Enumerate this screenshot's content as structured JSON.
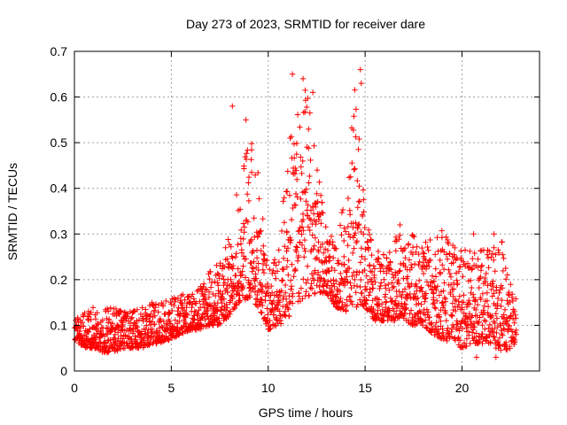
{
  "chart_data": {
    "type": "scatter",
    "title": "Day 273 of 2023, SRMTID for receiver dare",
    "xlabel": "GPS time / hours",
    "ylabel": "SRMTID / TECUs",
    "xlim": [
      0,
      24
    ],
    "ylim": [
      0,
      0.7
    ],
    "x_ticks": [
      0,
      5,
      10,
      15,
      20
    ],
    "y_ticks": [
      0,
      0.1,
      0.2,
      0.3,
      0.4,
      0.5,
      0.6,
      0.7
    ],
    "x_tick_labels": [
      "0",
      "5",
      "10",
      "15",
      "20"
    ],
    "y_tick_labels": [
      "0",
      "0.1",
      "0.2",
      "0.3",
      "0.4",
      "0.5",
      "0.6",
      "0.7"
    ],
    "grid": true,
    "marker": "+",
    "marker_color": "#ff0000",
    "time_step_hours": 0.025,
    "x_start": 0.0,
    "x_end": 22.8,
    "envelope": {
      "x": [
        0,
        0.5,
        1,
        1.5,
        2,
        2.5,
        3,
        3.5,
        4,
        4.5,
        5,
        5.5,
        6,
        6.5,
        7,
        7.5,
        8,
        8.5,
        9,
        9.5,
        10,
        10.5,
        11,
        11.5,
        12,
        12.5,
        13,
        13.5,
        14,
        14.5,
        15,
        15.5,
        16,
        16.5,
        17,
        17.5,
        18,
        18.5,
        19,
        19.5,
        20,
        20.5,
        21,
        21.5,
        22,
        22.5,
        22.8
      ],
      "low": [
        0.07,
        0.05,
        0.05,
        0.04,
        0.04,
        0.05,
        0.05,
        0.05,
        0.06,
        0.06,
        0.07,
        0.08,
        0.09,
        0.09,
        0.1,
        0.1,
        0.12,
        0.15,
        0.16,
        0.14,
        0.09,
        0.1,
        0.11,
        0.15,
        0.16,
        0.17,
        0.17,
        0.14,
        0.13,
        0.14,
        0.14,
        0.11,
        0.11,
        0.11,
        0.11,
        0.1,
        0.1,
        0.08,
        0.07,
        0.06,
        0.05,
        0.06,
        0.06,
        0.06,
        0.04,
        0.05,
        0.06
      ],
      "high": [
        0.11,
        0.13,
        0.14,
        0.14,
        0.14,
        0.13,
        0.13,
        0.14,
        0.15,
        0.15,
        0.16,
        0.17,
        0.17,
        0.19,
        0.22,
        0.24,
        0.3,
        0.42,
        0.54,
        0.45,
        0.22,
        0.26,
        0.48,
        0.6,
        0.62,
        0.46,
        0.32,
        0.27,
        0.4,
        0.64,
        0.34,
        0.26,
        0.27,
        0.3,
        0.3,
        0.3,
        0.28,
        0.3,
        0.31,
        0.28,
        0.27,
        0.27,
        0.29,
        0.26,
        0.3,
        0.22,
        0.16
      ]
    },
    "peaks": [
      {
        "x": 8.15,
        "y": 0.58
      },
      {
        "x": 8.85,
        "y": 0.55
      },
      {
        "x": 11.25,
        "y": 0.65
      },
      {
        "x": 11.8,
        "y": 0.64
      },
      {
        "x": 12.3,
        "y": 0.61
      },
      {
        "x": 14.75,
        "y": 0.66
      },
      {
        "x": 14.8,
        "y": 0.63
      },
      {
        "x": 16.8,
        "y": 0.32
      },
      {
        "x": 21.65,
        "y": 0.3
      },
      {
        "x": 20.6,
        "y": 0.3
      },
      {
        "x": 20.75,
        "y": 0.03
      },
      {
        "x": 21.75,
        "y": 0.03
      }
    ]
  }
}
